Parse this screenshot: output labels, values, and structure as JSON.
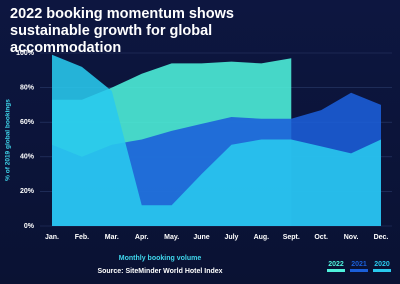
{
  "chart_data": {
    "type": "area",
    "title": "2022 booking momentum shows sustainable growth for global accommodation",
    "y_label": "% of 2019 global bookings",
    "x_label": "Monthly booking volume",
    "source": "Source: SiteMinder World Hotel Index",
    "categories": [
      "Jan.",
      "Feb.",
      "Mar.",
      "Apr.",
      "May.",
      "June",
      "July",
      "Aug.",
      "Sept.",
      "Oct.",
      "Nov.",
      "Dec."
    ],
    "series": [
      {
        "name": "2022",
        "color": "#4ff2dc",
        "values": [
          73,
          73,
          80,
          88,
          94,
          94,
          95,
          94,
          97,
          null,
          null,
          null
        ]
      },
      {
        "name": "2021",
        "color": "#1b5fd9",
        "values": [
          47,
          40,
          47,
          50,
          55,
          59,
          63,
          62,
          62,
          67,
          77,
          70
        ]
      },
      {
        "name": "2020",
        "color": "#29c9ee",
        "values": [
          99,
          92,
          78,
          12,
          12,
          30,
          47,
          50,
          50,
          46,
          42,
          50
        ]
      }
    ],
    "ylim": [
      0,
      100
    ],
    "yticks": [
      {
        "value": 0,
        "label": "0%"
      },
      {
        "value": 20,
        "label": "20%"
      },
      {
        "value": 40,
        "label": "40%"
      },
      {
        "value": 60,
        "label": "60%"
      },
      {
        "value": 80,
        "label": "80%"
      },
      {
        "value": 100,
        "label": "100%"
      }
    ],
    "grid": true
  }
}
